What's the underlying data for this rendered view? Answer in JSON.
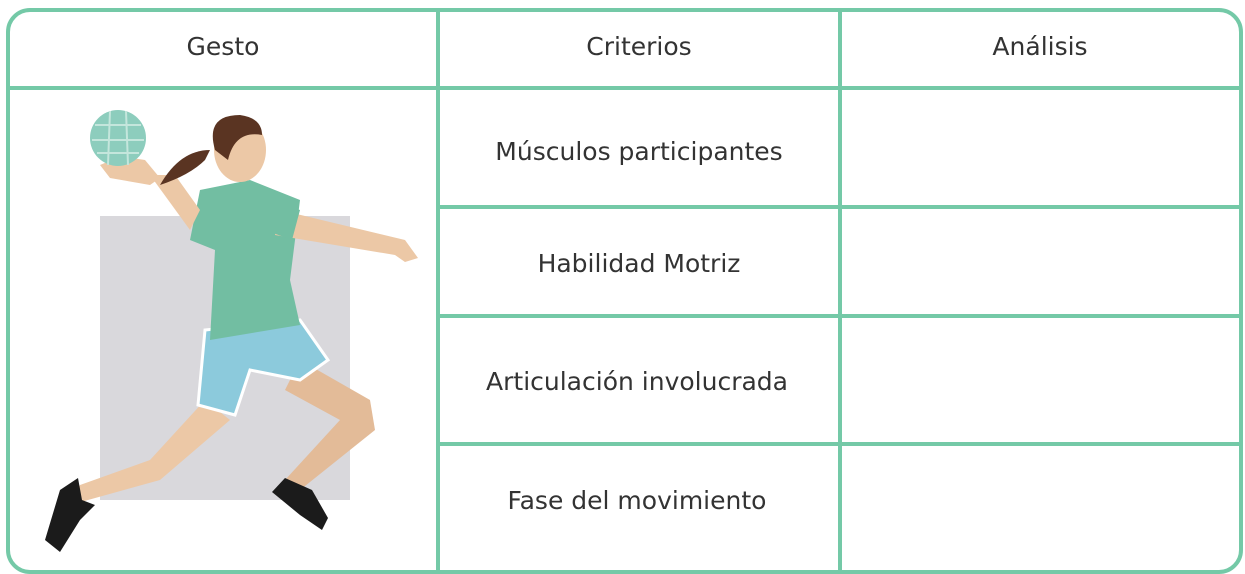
{
  "table": {
    "header": [
      "Gesto",
      "Criterios",
      "Análisis"
    ],
    "rows": [
      "Músculos participantes",
      "Habilidad Motriz",
      "Articulación involucrada",
      "Fase del movimiento"
    ]
  }
}
